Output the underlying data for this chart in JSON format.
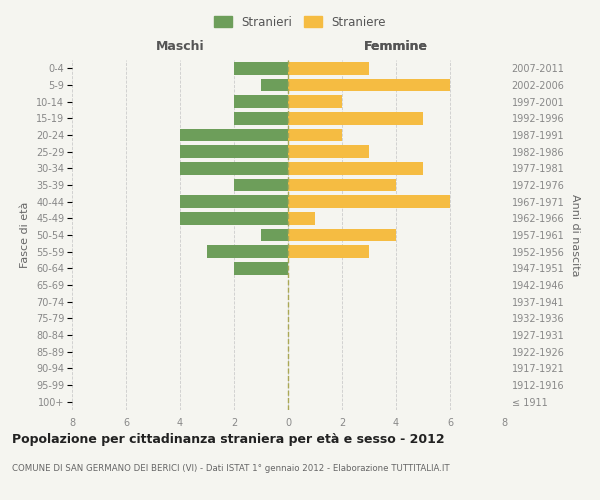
{
  "age_groups": [
    "100+",
    "95-99",
    "90-94",
    "85-89",
    "80-84",
    "75-79",
    "70-74",
    "65-69",
    "60-64",
    "55-59",
    "50-54",
    "45-49",
    "40-44",
    "35-39",
    "30-34",
    "25-29",
    "20-24",
    "15-19",
    "10-14",
    "5-9",
    "0-4"
  ],
  "birth_years": [
    "≤ 1911",
    "1912-1916",
    "1917-1921",
    "1922-1926",
    "1927-1931",
    "1932-1936",
    "1937-1941",
    "1942-1946",
    "1947-1951",
    "1952-1956",
    "1957-1961",
    "1962-1966",
    "1967-1971",
    "1972-1976",
    "1977-1981",
    "1982-1986",
    "1987-1991",
    "1992-1996",
    "1997-2001",
    "2002-2006",
    "2007-2011"
  ],
  "males": [
    0,
    0,
    0,
    0,
    0,
    0,
    0,
    0,
    2,
    3,
    1,
    4,
    4,
    2,
    4,
    4,
    4,
    2,
    2,
    1,
    2
  ],
  "females": [
    0,
    0,
    0,
    0,
    0,
    0,
    0,
    0,
    0,
    3,
    4,
    1,
    6,
    4,
    5,
    3,
    2,
    5,
    2,
    6,
    3
  ],
  "male_color": "#6d9e5a",
  "female_color": "#f5bc42",
  "male_label": "Stranieri",
  "female_label": "Straniere",
  "maschi_label": "Maschi",
  "femmine_label": "Femmine",
  "ylabel_left": "Fasce di età",
  "ylabel_right": "Anni di nascita",
  "title": "Popolazione per cittadinanza straniera per età e sesso - 2012",
  "subtitle": "COMUNE DI SAN GERMANO DEI BERICI (VI) - Dati ISTAT 1° gennaio 2012 - Elaborazione TUTTITALIA.IT",
  "xlim": 8,
  "background_color": "#f5f5f0",
  "grid_color": "#cccccc",
  "bar_height": 0.75
}
